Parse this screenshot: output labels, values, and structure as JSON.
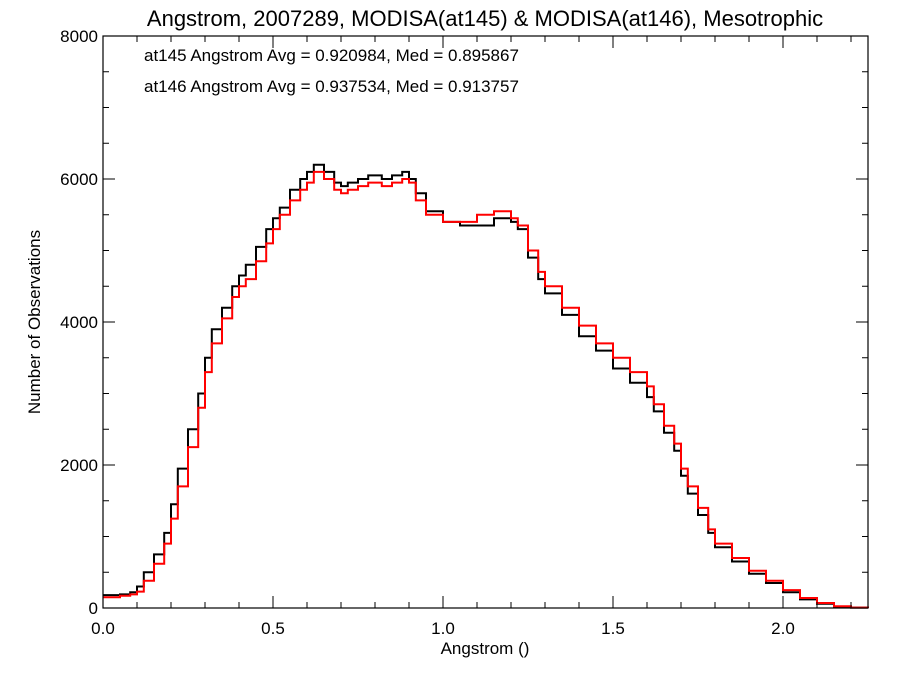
{
  "chart_data": {
    "type": "line",
    "step": true,
    "title": "Angstrom, 2007289, MODISA(at145) & MODISA(at146), Mesotrophic",
    "xlabel": "Angstrom ()",
    "ylabel": "Number of Observations",
    "xlim": [
      0.0,
      2.25
    ],
    "ylim": [
      0,
      8000
    ],
    "grid": false,
    "x_ticks": [
      {
        "value": 0.0,
        "label": "0.0"
      },
      {
        "value": 0.5,
        "label": "0.5"
      },
      {
        "value": 1.0,
        "label": "1.0"
      },
      {
        "value": 1.5,
        "label": "1.5"
      },
      {
        "value": 2.0,
        "label": "2.0"
      }
    ],
    "y_ticks": [
      {
        "value": 0,
        "label": "0"
      },
      {
        "value": 2000,
        "label": "2000"
      },
      {
        "value": 4000,
        "label": "4000"
      },
      {
        "value": 6000,
        "label": "6000"
      },
      {
        "value": 8000,
        "label": "8000"
      }
    ],
    "annotations": [
      {
        "text": "at145 Angstrom Avg = 0.920984, Med = 0.895867",
        "color": "#000000"
      },
      {
        "text": "at146 Angstrom Avg = 0.937534, Med = 0.913757",
        "color": "#ff0000"
      }
    ],
    "series": [
      {
        "color": "#000000",
        "points": [
          [
            0.0,
            180
          ],
          [
            0.05,
            190
          ],
          [
            0.08,
            220
          ],
          [
            0.1,
            300
          ],
          [
            0.12,
            500
          ],
          [
            0.15,
            750
          ],
          [
            0.18,
            1050
          ],
          [
            0.2,
            1450
          ],
          [
            0.22,
            1950
          ],
          [
            0.25,
            2500
          ],
          [
            0.28,
            3000
          ],
          [
            0.3,
            3500
          ],
          [
            0.32,
            3900
          ],
          [
            0.35,
            4200
          ],
          [
            0.38,
            4500
          ],
          [
            0.4,
            4650
          ],
          [
            0.42,
            4800
          ],
          [
            0.45,
            5050
          ],
          [
            0.48,
            5300
          ],
          [
            0.5,
            5450
          ],
          [
            0.52,
            5600
          ],
          [
            0.55,
            5850
          ],
          [
            0.58,
            6000
          ],
          [
            0.6,
            6100
          ],
          [
            0.62,
            6200
          ],
          [
            0.65,
            6100
          ],
          [
            0.68,
            5950
          ],
          [
            0.7,
            5900
          ],
          [
            0.72,
            5950
          ],
          [
            0.75,
            6000
          ],
          [
            0.78,
            6050
          ],
          [
            0.8,
            6050
          ],
          [
            0.82,
            6000
          ],
          [
            0.85,
            6050
          ],
          [
            0.88,
            6100
          ],
          [
            0.9,
            6000
          ],
          [
            0.92,
            5800
          ],
          [
            0.95,
            5550
          ],
          [
            1.0,
            5400
          ],
          [
            1.05,
            5350
          ],
          [
            1.1,
            5350
          ],
          [
            1.15,
            5450
          ],
          [
            1.2,
            5400
          ],
          [
            1.22,
            5300
          ],
          [
            1.25,
            4900
          ],
          [
            1.28,
            4600
          ],
          [
            1.3,
            4400
          ],
          [
            1.35,
            4100
          ],
          [
            1.4,
            3800
          ],
          [
            1.45,
            3600
          ],
          [
            1.5,
            3350
          ],
          [
            1.55,
            3150
          ],
          [
            1.6,
            2950
          ],
          [
            1.62,
            2750
          ],
          [
            1.65,
            2450
          ],
          [
            1.68,
            2200
          ],
          [
            1.7,
            1850
          ],
          [
            1.72,
            1600
          ],
          [
            1.75,
            1300
          ],
          [
            1.78,
            1050
          ],
          [
            1.8,
            850
          ],
          [
            1.85,
            650
          ],
          [
            1.9,
            480
          ],
          [
            1.95,
            350
          ],
          [
            2.0,
            220
          ],
          [
            2.05,
            120
          ],
          [
            2.1,
            60
          ],
          [
            2.15,
            20
          ],
          [
            2.2,
            5
          ],
          [
            2.25,
            0
          ]
        ]
      },
      {
        "color": "#ff0000",
        "points": [
          [
            0.0,
            150
          ],
          [
            0.05,
            170
          ],
          [
            0.08,
            190
          ],
          [
            0.1,
            230
          ],
          [
            0.12,
            380
          ],
          [
            0.15,
            620
          ],
          [
            0.18,
            900
          ],
          [
            0.2,
            1250
          ],
          [
            0.22,
            1700
          ],
          [
            0.25,
            2250
          ],
          [
            0.28,
            2800
          ],
          [
            0.3,
            3300
          ],
          [
            0.32,
            3700
          ],
          [
            0.35,
            4050
          ],
          [
            0.38,
            4350
          ],
          [
            0.4,
            4500
          ],
          [
            0.42,
            4600
          ],
          [
            0.45,
            4850
          ],
          [
            0.48,
            5100
          ],
          [
            0.5,
            5300
          ],
          [
            0.52,
            5500
          ],
          [
            0.55,
            5700
          ],
          [
            0.58,
            5850
          ],
          [
            0.6,
            5950
          ],
          [
            0.62,
            6100
          ],
          [
            0.65,
            6000
          ],
          [
            0.68,
            5850
          ],
          [
            0.7,
            5800
          ],
          [
            0.72,
            5850
          ],
          [
            0.75,
            5900
          ],
          [
            0.78,
            5950
          ],
          [
            0.8,
            5950
          ],
          [
            0.82,
            5900
          ],
          [
            0.85,
            5950
          ],
          [
            0.88,
            6000
          ],
          [
            0.9,
            5950
          ],
          [
            0.92,
            5700
          ],
          [
            0.95,
            5500
          ],
          [
            1.0,
            5400
          ],
          [
            1.05,
            5400
          ],
          [
            1.1,
            5500
          ],
          [
            1.15,
            5550
          ],
          [
            1.2,
            5450
          ],
          [
            1.22,
            5350
          ],
          [
            1.25,
            5000
          ],
          [
            1.28,
            4700
          ],
          [
            1.3,
            4500
          ],
          [
            1.35,
            4200
          ],
          [
            1.4,
            3950
          ],
          [
            1.45,
            3700
          ],
          [
            1.5,
            3500
          ],
          [
            1.55,
            3300
          ],
          [
            1.6,
            3100
          ],
          [
            1.62,
            2850
          ],
          [
            1.65,
            2550
          ],
          [
            1.68,
            2300
          ],
          [
            1.7,
            1950
          ],
          [
            1.72,
            1700
          ],
          [
            1.75,
            1400
          ],
          [
            1.78,
            1100
          ],
          [
            1.8,
            900
          ],
          [
            1.85,
            700
          ],
          [
            1.9,
            520
          ],
          [
            1.95,
            380
          ],
          [
            2.0,
            250
          ],
          [
            2.05,
            140
          ],
          [
            2.1,
            70
          ],
          [
            2.15,
            25
          ],
          [
            2.2,
            5
          ],
          [
            2.25,
            0
          ]
        ]
      }
    ]
  }
}
